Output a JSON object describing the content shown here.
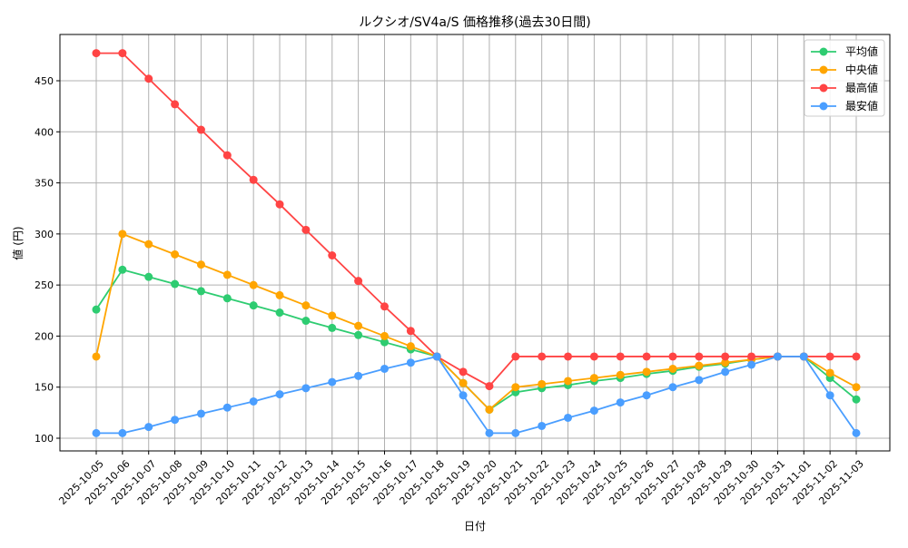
{
  "chart_data": {
    "type": "line",
    "title": "ルクシオ/SV4a/S 価格推移(過去30日間)",
    "xlabel": "日付",
    "ylabel": "値 (円)",
    "ylim": [
      87,
      492
    ],
    "yticks": [
      100,
      150,
      200,
      250,
      300,
      350,
      400,
      450
    ],
    "grid": true,
    "legend_position": "top-right",
    "x": [
      "2025-10-05",
      "2025-10-06",
      "2025-10-07",
      "2025-10-08",
      "2025-10-09",
      "2025-10-10",
      "2025-10-11",
      "2025-10-12",
      "2025-10-13",
      "2025-10-14",
      "2025-10-15",
      "2025-10-16",
      "2025-10-17",
      "2025-10-18",
      "2025-10-19",
      "2025-10-20",
      "2025-10-21",
      "2025-10-22",
      "2025-10-23",
      "2025-10-24",
      "2025-10-25",
      "2025-10-26",
      "2025-10-27",
      "2025-10-28",
      "2025-10-29",
      "2025-10-30",
      "2025-10-31",
      "2025-11-01",
      "2025-11-02",
      "2025-11-03"
    ],
    "series": [
      {
        "name": "平均値",
        "color": "#2ecc71",
        "values": [
          226,
          265,
          258,
          251,
          244,
          237,
          230,
          223,
          215,
          208,
          201,
          194,
          187,
          180,
          154,
          128,
          145,
          149,
          152,
          156,
          159,
          163,
          166,
          170,
          173,
          177,
          180,
          180,
          159,
          138
        ]
      },
      {
        "name": "中央値",
        "color": "#ffa500",
        "values": [
          180,
          300,
          290,
          280,
          270,
          260,
          250,
          240,
          230,
          220,
          210,
          200,
          190,
          180,
          154,
          128,
          150,
          153,
          156,
          159,
          162,
          165,
          168,
          171,
          174,
          177,
          180,
          180,
          164,
          150
        ]
      },
      {
        "name": "最高値",
        "color": "#ff4444",
        "values": [
          477,
          477,
          452,
          427,
          402,
          377,
          353,
          329,
          304,
          279,
          254,
          229,
          205,
          180,
          165,
          151,
          180,
          180,
          180,
          180,
          180,
          180,
          180,
          180,
          180,
          180,
          180,
          180,
          180,
          180
        ]
      },
      {
        "name": "最安値",
        "color": "#4a9eff",
        "values": [
          105,
          105,
          111,
          118,
          124,
          130,
          136,
          143,
          149,
          155,
          161,
          168,
          174,
          180,
          142,
          105,
          105,
          112,
          120,
          127,
          135,
          142,
          150,
          157,
          165,
          172,
          180,
          180,
          142,
          105
        ]
      }
    ]
  }
}
